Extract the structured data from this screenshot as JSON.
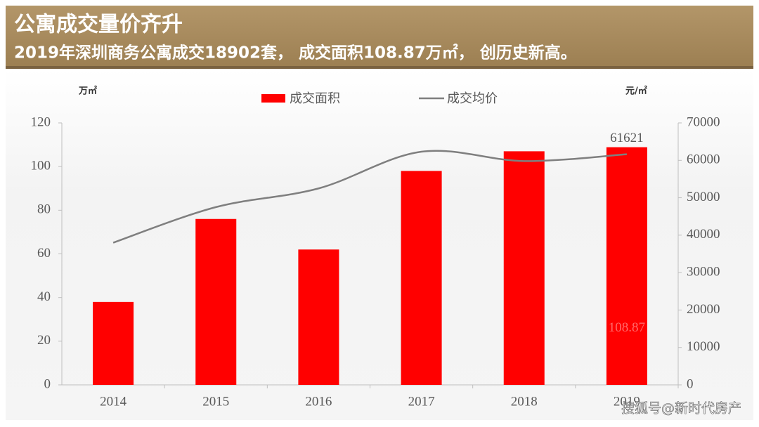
{
  "chart_data": {
    "type": "bar_line",
    "title": "公寓成交量价齐升",
    "subtitle": "2019年深圳商务公寓成交18902套， 成交面积108.87万㎡， 创历史新高。",
    "y_label": "万㎡",
    "y2_label": "元/㎡",
    "categories": [
      "2014",
      "2015",
      "2016",
      "2017",
      "2018",
      "2019"
    ],
    "series": [
      {
        "name": "成交面积",
        "type": "bar",
        "color": "#ff0000",
        "values": [
          38,
          76,
          62,
          98,
          107,
          108.87
        ]
      },
      {
        "name": "成交均价",
        "type": "line",
        "axis": "y2",
        "color": "#7f7f7f",
        "values": [
          38000,
          47500,
          52500,
          62300,
          59800,
          61621
        ]
      }
    ],
    "ylim": [
      0,
      120
    ],
    "yticks": [
      0,
      20,
      40,
      60,
      80,
      100,
      120
    ],
    "y2lim": [
      0,
      70000
    ],
    "y2ticks": [
      0,
      10000,
      20000,
      30000,
      40000,
      50000,
      60000,
      70000
    ],
    "legend": "top",
    "grid": false
  },
  "watermark": "搜狐号@新时代房产"
}
